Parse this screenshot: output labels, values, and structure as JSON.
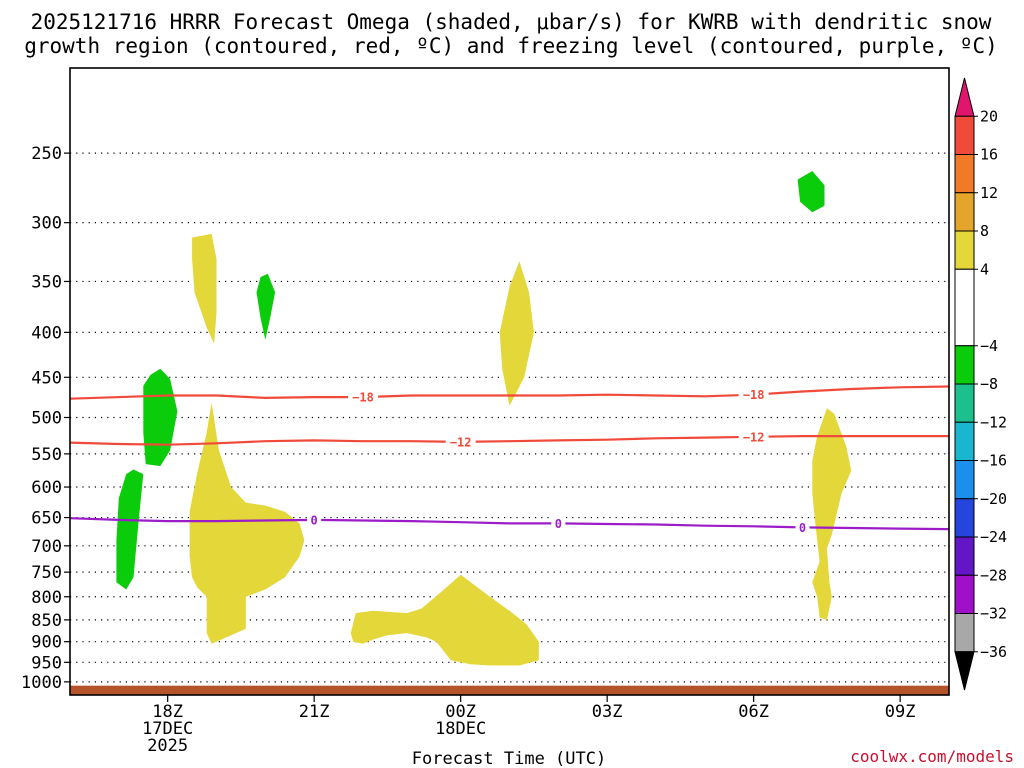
{
  "chart_data": {
    "type": "time-height cross section",
    "title_lines": [
      "2025121716 HRRR Forecast Omega (shaded, μbar/s) for KWRB with dendritic snow",
      "growth region (contoured, red, ºC) and freezing level (contoured, purple, ºC)"
    ],
    "xlabel": "Forecast Time (UTC)",
    "x_range_hours_since_16Z": [
      0,
      18
    ],
    "x_ticks": [
      {
        "h": 2,
        "lines": [
          "18Z",
          "17DEC",
          "2025"
        ]
      },
      {
        "h": 5,
        "lines": [
          "21Z"
        ]
      },
      {
        "h": 8,
        "lines": [
          "00Z",
          "18DEC"
        ]
      },
      {
        "h": 11,
        "lines": [
          "03Z"
        ]
      },
      {
        "h": 14,
        "lines": [
          "06Z"
        ]
      },
      {
        "h": 17,
        "lines": [
          "09Z"
        ]
      }
    ],
    "y_axis": {
      "scale": "log",
      "unit": "hPa",
      "range": [
        200,
        1035
      ],
      "inverted": true
    },
    "y_ticks": [
      250,
      300,
      350,
      400,
      450,
      500,
      550,
      600,
      650,
      700,
      750,
      800,
      850,
      900,
      950,
      1000
    ],
    "grid": "dotted",
    "colorbar": {
      "labels": [
        "20",
        "16",
        "12",
        "8",
        "4",
        "−4",
        "−8",
        "−12",
        "−16",
        "−20",
        "−24",
        "−28",
        "−32",
        "−36"
      ],
      "segments": [
        {
          "from": 20,
          "to": 24,
          "color": "#e0166e",
          "shape": "arrow-up"
        },
        {
          "from": 16,
          "to": 20,
          "color": "#f04a3a"
        },
        {
          "from": 12,
          "to": 16,
          "color": "#f07a28"
        },
        {
          "from": 8,
          "to": 12,
          "color": "#e5a52a"
        },
        {
          "from": 4,
          "to": 8,
          "color": "#e3d73a"
        },
        {
          "from": -4,
          "to": 4,
          "color": "#ffffff"
        },
        {
          "from": -8,
          "to": -4,
          "color": "#0bcc0b"
        },
        {
          "from": -12,
          "to": -8,
          "color": "#1cc08c"
        },
        {
          "from": -16,
          "to": -12,
          "color": "#1ab6cf"
        },
        {
          "from": -20,
          "to": -16,
          "color": "#1c8fec"
        },
        {
          "from": -24,
          "to": -20,
          "color": "#2545dc"
        },
        {
          "from": -28,
          "to": -24,
          "color": "#6216c6"
        },
        {
          "from": -32,
          "to": -28,
          "color": "#a010c8"
        },
        {
          "from": -36,
          "to": -32,
          "color": "#a8a8a8"
        },
        {
          "from": -40,
          "to": -36,
          "color": "#000000",
          "shape": "arrow-down"
        }
      ]
    },
    "omega_regions": [
      {
        "color": "#0bcc0b",
        "points": [
          [
            14.9,
            268
          ],
          [
            15.2,
            262
          ],
          [
            15.45,
            272
          ],
          [
            15.45,
            287
          ],
          [
            15.2,
            292
          ],
          [
            14.95,
            284
          ]
        ]
      },
      {
        "color": "#0bcc0b",
        "points": [
          [
            3.9,
            346
          ],
          [
            4.05,
            343
          ],
          [
            4.2,
            360
          ],
          [
            4.1,
            385
          ],
          [
            4.0,
            408
          ],
          [
            3.9,
            385
          ],
          [
            3.82,
            360
          ]
        ]
      },
      {
        "color": "#0bcc0b",
        "points": [
          [
            1.5,
            460
          ],
          [
            1.65,
            447
          ],
          [
            1.85,
            440
          ],
          [
            2.05,
            452
          ],
          [
            2.2,
            492
          ],
          [
            2.05,
            545
          ],
          [
            1.85,
            568
          ],
          [
            1.55,
            565
          ],
          [
            1.5,
            520
          ]
        ]
      },
      {
        "color": "#0bcc0b",
        "points": [
          [
            1.0,
            618
          ],
          [
            1.15,
            580
          ],
          [
            1.3,
            573
          ],
          [
            1.5,
            580
          ],
          [
            1.4,
            660
          ],
          [
            1.3,
            760
          ],
          [
            1.15,
            785
          ],
          [
            0.95,
            770
          ],
          [
            0.95,
            690
          ]
        ]
      },
      {
        "color": "#e3d73a",
        "points": [
          [
            2.5,
            312
          ],
          [
            2.9,
            309
          ],
          [
            3.0,
            330
          ],
          [
            3.0,
            380
          ],
          [
            2.95,
            412
          ],
          [
            2.8,
            395
          ],
          [
            2.55,
            360
          ],
          [
            2.5,
            330
          ]
        ]
      },
      {
        "color": "#e3d73a",
        "points": [
          [
            8.8,
            400
          ],
          [
            9.0,
            355
          ],
          [
            9.2,
            332
          ],
          [
            9.4,
            360
          ],
          [
            9.5,
            400
          ],
          [
            9.3,
            450
          ],
          [
            9.0,
            485
          ],
          [
            8.85,
            440
          ]
        ]
      },
      {
        "color": "#e3d73a",
        "points": [
          [
            2.45,
            640
          ],
          [
            2.6,
            580
          ],
          [
            2.8,
            520
          ],
          [
            2.9,
            481
          ],
          [
            3.05,
            545
          ],
          [
            3.3,
            600
          ],
          [
            3.6,
            625
          ],
          [
            4.0,
            630
          ],
          [
            4.4,
            640
          ],
          [
            4.7,
            660
          ],
          [
            4.8,
            690
          ],
          [
            4.7,
            720
          ],
          [
            4.4,
            760
          ],
          [
            4.0,
            785
          ],
          [
            3.6,
            800
          ],
          [
            3.6,
            870
          ],
          [
            3.2,
            890
          ],
          [
            2.9,
            905
          ],
          [
            2.8,
            880
          ],
          [
            2.8,
            800
          ],
          [
            2.6,
            780
          ],
          [
            2.5,
            760
          ],
          [
            2.45,
            720
          ]
        ]
      },
      {
        "color": "#e3d73a",
        "points": [
          [
            5.75,
            880
          ],
          [
            5.85,
            835
          ],
          [
            6.2,
            830
          ],
          [
            6.9,
            835
          ],
          [
            7.2,
            825
          ],
          [
            7.6,
            790
          ],
          [
            8.0,
            755
          ],
          [
            8.6,
            800
          ],
          [
            9.0,
            830
          ],
          [
            9.35,
            860
          ],
          [
            9.6,
            900
          ],
          [
            9.6,
            945
          ],
          [
            9.2,
            958
          ],
          [
            8.6,
            958
          ],
          [
            8.2,
            955
          ],
          [
            7.8,
            945
          ],
          [
            7.5,
            900
          ],
          [
            7.3,
            890
          ],
          [
            6.9,
            880
          ],
          [
            6.5,
            885
          ],
          [
            6.2,
            895
          ],
          [
            6.0,
            905
          ],
          [
            5.8,
            900
          ]
        ]
      },
      {
        "color": "#e3d73a",
        "points": [
          [
            15.2,
            560
          ],
          [
            15.3,
            525
          ],
          [
            15.5,
            488
          ],
          [
            15.65,
            495
          ],
          [
            15.9,
            540
          ],
          [
            16.0,
            575
          ],
          [
            15.8,
            610
          ],
          [
            15.6,
            680
          ],
          [
            15.5,
            705
          ],
          [
            15.55,
            770
          ],
          [
            15.6,
            800
          ],
          [
            15.5,
            850
          ],
          [
            15.35,
            845
          ],
          [
            15.3,
            800
          ],
          [
            15.2,
            770
          ],
          [
            15.35,
            730
          ],
          [
            15.3,
            690
          ],
          [
            15.25,
            650
          ],
          [
            15.2,
            610
          ]
        ]
      }
    ],
    "contours": [
      {
        "name": "-18",
        "color": "#f04a3a",
        "label": "−18",
        "label_at": [
          6.0,
          14.0
        ],
        "points": [
          [
            0,
            476
          ],
          [
            2,
            472
          ],
          [
            3,
            472
          ],
          [
            4,
            475
          ],
          [
            5,
            474
          ],
          [
            6,
            474
          ],
          [
            7,
            472
          ],
          [
            8,
            472
          ],
          [
            9,
            472
          ],
          [
            10,
            472
          ],
          [
            11,
            471
          ],
          [
            12,
            472
          ],
          [
            13,
            473
          ],
          [
            14,
            471
          ],
          [
            15,
            467
          ],
          [
            16,
            464
          ],
          [
            17,
            462
          ],
          [
            18,
            461
          ]
        ]
      },
      {
        "name": "-12",
        "color": "#f04a3a",
        "label": "−12",
        "label_at": [
          8.0,
          14.0
        ],
        "points": [
          [
            0,
            534
          ],
          [
            1,
            536
          ],
          [
            2,
            537
          ],
          [
            3,
            535
          ],
          [
            4,
            532
          ],
          [
            5,
            531
          ],
          [
            6,
            532
          ],
          [
            7,
            532
          ],
          [
            8,
            533
          ],
          [
            9,
            532
          ],
          [
            10,
            531
          ],
          [
            11,
            530
          ],
          [
            12,
            528
          ],
          [
            13,
            527
          ],
          [
            14,
            526
          ],
          [
            15,
            525
          ],
          [
            16,
            525
          ],
          [
            17,
            525
          ],
          [
            18,
            525
          ]
        ]
      },
      {
        "name": "0",
        "color": "#9c1cc8",
        "label": "0",
        "label_at": [
          5.0,
          10.0,
          15.0
        ],
        "points": [
          [
            0,
            651
          ],
          [
            1,
            654
          ],
          [
            2,
            656
          ],
          [
            3,
            656
          ],
          [
            4,
            655
          ],
          [
            5,
            654
          ],
          [
            6,
            655
          ],
          [
            7,
            656
          ],
          [
            8,
            658
          ],
          [
            9,
            660
          ],
          [
            10,
            660
          ],
          [
            11,
            661
          ],
          [
            12,
            662
          ],
          [
            13,
            664
          ],
          [
            14,
            665
          ],
          [
            15,
            667
          ],
          [
            16,
            668
          ],
          [
            17,
            669
          ],
          [
            18,
            670
          ]
        ]
      }
    ],
    "surface": {
      "color": "#b5542a",
      "from_hPa": 1010
    }
  },
  "credit": "coolwx.com/models"
}
